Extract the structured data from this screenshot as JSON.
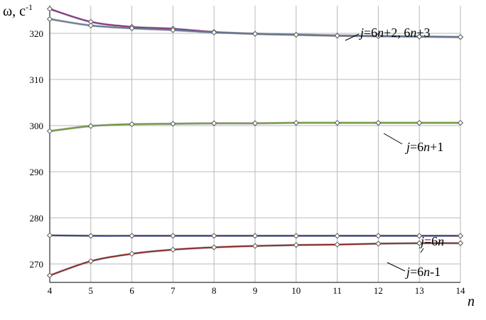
{
  "chart_data": {
    "type": "line",
    "xlabel": "n",
    "ylabel": "ω, c",
    "ylabel_sup": "-1",
    "xlim": [
      4,
      14
    ],
    "ylim": [
      266,
      326
    ],
    "grid": true,
    "x_ticks": [
      4,
      5,
      6,
      7,
      8,
      9,
      10,
      11,
      12,
      13,
      14
    ],
    "y_ticks": [
      270,
      280,
      290,
      300,
      310,
      320
    ],
    "x": [
      4,
      5,
      6,
      7,
      8,
      9,
      10,
      11,
      12,
      13,
      14
    ],
    "series": [
      {
        "name": "j=6n+2",
        "color": "#8b1f87",
        "marker": "diamond",
        "values": [
          325.3,
          322.5,
          321.4,
          321.0,
          320.3,
          319.9,
          319.7,
          319.5,
          319.4,
          319.3,
          319.2
        ]
      },
      {
        "name": "j=6n+3",
        "color": "#5d7a99",
        "marker": "diamond",
        "values": [
          323.1,
          321.7,
          321.1,
          320.7,
          320.2,
          319.9,
          319.7,
          319.5,
          319.4,
          319.3,
          319.2
        ]
      },
      {
        "name": "j=6n+1",
        "color": "#6a9a2a",
        "marker": "diamond",
        "values": [
          298.8,
          299.9,
          300.3,
          300.4,
          300.5,
          300.5,
          300.6,
          300.6,
          300.6,
          300.6,
          300.6
        ]
      },
      {
        "name": "j=6n",
        "color": "#1f2d8a",
        "marker": "diamond",
        "values": [
          276.2,
          276.1,
          276.1,
          276.1,
          276.1,
          276.1,
          276.1,
          276.1,
          276.1,
          276.1,
          276.1
        ]
      },
      {
        "name": "j=6n-1",
        "color": "#8b1a1a",
        "marker": "diamond",
        "values": [
          267.5,
          270.6,
          272.2,
          273.1,
          273.6,
          273.9,
          274.1,
          274.2,
          274.4,
          274.5,
          274.5
        ]
      }
    ],
    "annotations": [
      {
        "parts": [
          {
            "t": "j",
            "i": true
          },
          {
            "t": "=6",
            "i": false
          },
          {
            "t": "n",
            "i": true
          },
          {
            "t": "+2, 6",
            "i": false
          },
          {
            "t": "n",
            "i": true
          },
          {
            "t": "+3",
            "i": false
          }
        ]
      },
      {
        "parts": [
          {
            "t": "j",
            "i": true
          },
          {
            "t": "=6",
            "i": false
          },
          {
            "t": "n",
            "i": true
          },
          {
            "t": "+1",
            "i": false
          }
        ]
      },
      {
        "parts": [
          {
            "t": "j",
            "i": true
          },
          {
            "t": "=6",
            "i": false
          },
          {
            "t": "n",
            "i": true
          }
        ]
      },
      {
        "parts": [
          {
            "t": "j",
            "i": true
          },
          {
            "t": "=6",
            "i": false
          },
          {
            "t": "n",
            "i": true
          },
          {
            "t": "-1",
            "i": false
          }
        ]
      }
    ]
  }
}
